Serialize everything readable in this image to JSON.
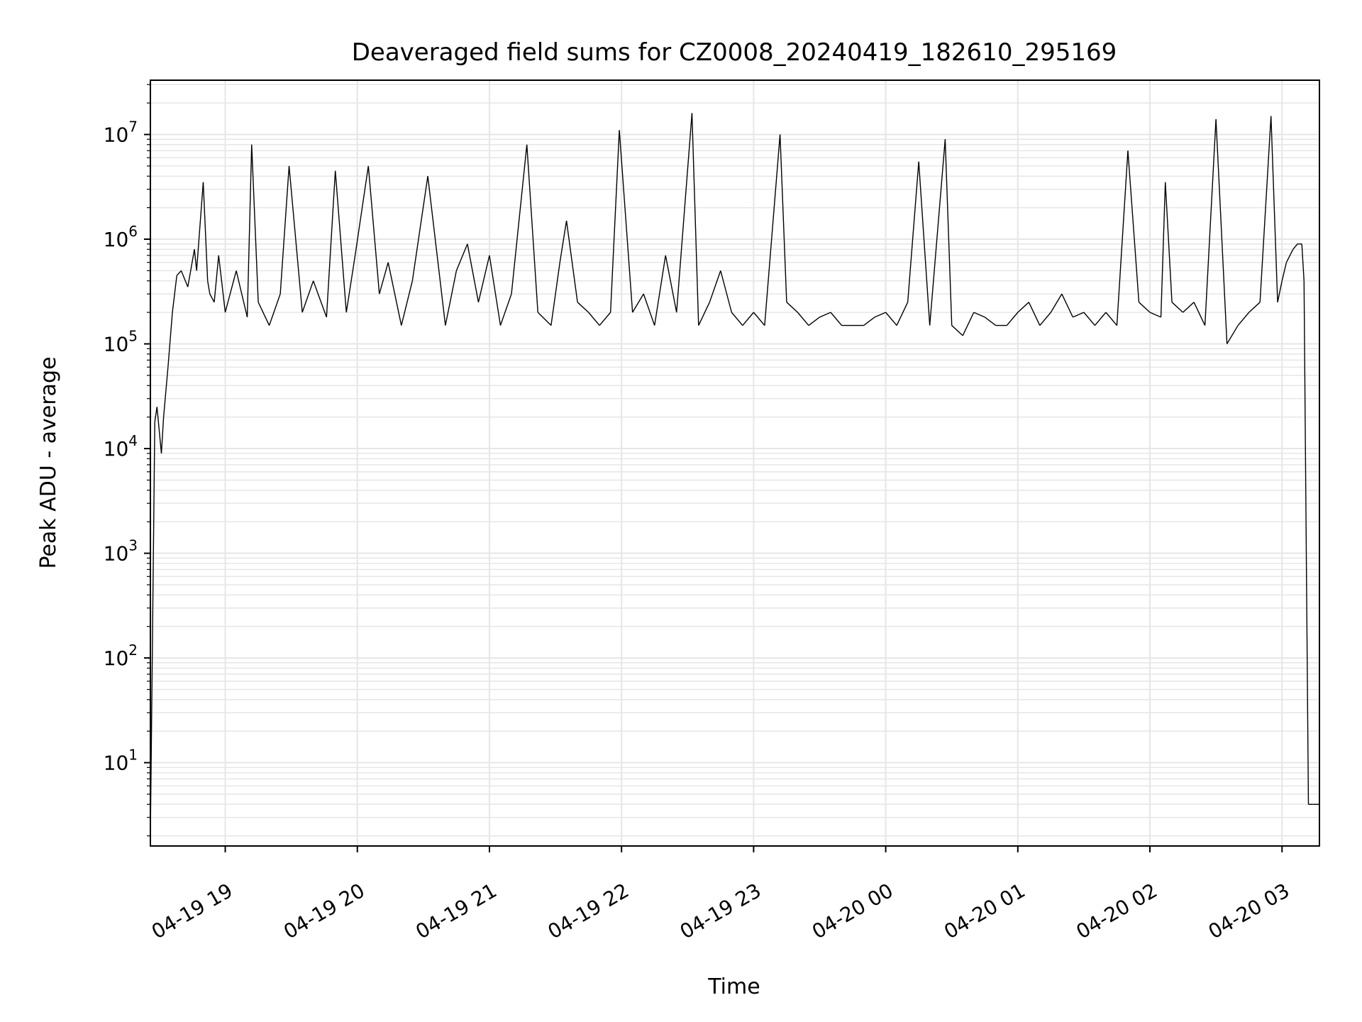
{
  "chart_data": {
    "type": "line",
    "title": "Deaveraged field sums for CZ0008_20240419_182610_295169",
    "xlabel": "Time",
    "ylabel": "Peak ADU - average",
    "yscale": "log",
    "ylim": [
      1.6,
      33000000
    ],
    "xlim": [
      "2024-04-19 18:26",
      "2024-04-20 03:17"
    ],
    "grid": true,
    "line_color": "#000000",
    "grid_color": "#e6e6e6",
    "x_ticks": [
      {
        "label": "04-19 19",
        "time": "2024-04-19 19:00"
      },
      {
        "label": "04-19 20",
        "time": "2024-04-19 20:00"
      },
      {
        "label": "04-19 21",
        "time": "2024-04-19 21:00"
      },
      {
        "label": "04-19 22",
        "time": "2024-04-19 22:00"
      },
      {
        "label": "04-19 23",
        "time": "2024-04-19 23:00"
      },
      {
        "label": "04-20 00",
        "time": "2024-04-20 00:00"
      },
      {
        "label": "04-20 01",
        "time": "2024-04-20 01:00"
      },
      {
        "label": "04-20 02",
        "time": "2024-04-20 02:00"
      },
      {
        "label": "04-20 03",
        "time": "2024-04-20 03:00"
      }
    ],
    "y_ticks": [
      {
        "base": "10",
        "exp": "1",
        "value": 10
      },
      {
        "base": "10",
        "exp": "2",
        "value": 100
      },
      {
        "base": "10",
        "exp": "3",
        "value": 1000
      },
      {
        "base": "10",
        "exp": "4",
        "value": 10000
      },
      {
        "base": "10",
        "exp": "5",
        "value": 100000
      },
      {
        "base": "10",
        "exp": "6",
        "value": 1000000
      },
      {
        "base": "10",
        "exp": "7",
        "value": 10000000
      }
    ],
    "series": [
      {
        "x": [
          "2024-04-19 18:26",
          "2024-04-19 18:28",
          "2024-04-19 18:29",
          "2024-04-19 18:31",
          "2024-04-19 18:32",
          "2024-04-19 18:34",
          "2024-04-19 18:36",
          "2024-04-19 18:38",
          "2024-04-19 18:40",
          "2024-04-19 18:43",
          "2024-04-19 18:46",
          "2024-04-19 18:47",
          "2024-04-19 18:50",
          "2024-04-19 18:52",
          "2024-04-19 18:53",
          "2024-04-19 18:55",
          "2024-04-19 18:57",
          "2024-04-19 19:00",
          "2024-04-19 19:05",
          "2024-04-19 19:10",
          "2024-04-19 19:12",
          "2024-04-19 19:15",
          "2024-04-19 19:20",
          "2024-04-19 19:25",
          "2024-04-19 19:29",
          "2024-04-19 19:35",
          "2024-04-19 19:40",
          "2024-04-19 19:46",
          "2024-04-19 19:50",
          "2024-04-19 19:55",
          "2024-04-19 19:59",
          "2024-04-19 20:05",
          "2024-04-19 20:10",
          "2024-04-19 20:14",
          "2024-04-19 20:20",
          "2024-04-19 20:25",
          "2024-04-19 20:32",
          "2024-04-19 20:40",
          "2024-04-19 20:45",
          "2024-04-19 20:50",
          "2024-04-19 20:55",
          "2024-04-19 21:00",
          "2024-04-19 21:05",
          "2024-04-19 21:10",
          "2024-04-19 21:17",
          "2024-04-19 21:22",
          "2024-04-19 21:28",
          "2024-04-19 21:32",
          "2024-04-19 21:35",
          "2024-04-19 21:40",
          "2024-04-19 21:45",
          "2024-04-19 21:50",
          "2024-04-19 21:55",
          "2024-04-19 21:59",
          "2024-04-19 22:05",
          "2024-04-19 22:10",
          "2024-04-19 22:15",
          "2024-04-19 22:20",
          "2024-04-19 22:25",
          "2024-04-19 22:32",
          "2024-04-19 22:35",
          "2024-04-19 22:40",
          "2024-04-19 22:45",
          "2024-04-19 22:50",
          "2024-04-19 22:55",
          "2024-04-19 23:00",
          "2024-04-19 23:05",
          "2024-04-19 23:12",
          "2024-04-19 23:15",
          "2024-04-19 23:20",
          "2024-04-19 23:25",
          "2024-04-19 23:30",
          "2024-04-19 23:35",
          "2024-04-19 23:40",
          "2024-04-19 23:45",
          "2024-04-19 23:50",
          "2024-04-19 23:55",
          "2024-04-20 00:00",
          "2024-04-20 00:05",
          "2024-04-20 00:10",
          "2024-04-20 00:15",
          "2024-04-20 00:20",
          "2024-04-20 00:27",
          "2024-04-20 00:30",
          "2024-04-20 00:35",
          "2024-04-20 00:40",
          "2024-04-20 00:45",
          "2024-04-20 00:50",
          "2024-04-20 00:55",
          "2024-04-20 01:00",
          "2024-04-20 01:05",
          "2024-04-20 01:10",
          "2024-04-20 01:15",
          "2024-04-20 01:20",
          "2024-04-20 01:25",
          "2024-04-20 01:30",
          "2024-04-20 01:35",
          "2024-04-20 01:40",
          "2024-04-20 01:45",
          "2024-04-20 01:50",
          "2024-04-20 01:55",
          "2024-04-20 02:00",
          "2024-04-20 02:05",
          "2024-04-20 02:07",
          "2024-04-20 02:10",
          "2024-04-20 02:15",
          "2024-04-20 02:20",
          "2024-04-20 02:25",
          "2024-04-20 02:30",
          "2024-04-20 02:35",
          "2024-04-20 02:40",
          "2024-04-20 02:45",
          "2024-04-20 02:50",
          "2024-04-20 02:55",
          "2024-04-20 02:58",
          "2024-04-20 03:00",
          "2024-04-20 03:02",
          "2024-04-20 03:05",
          "2024-04-20 03:07",
          "2024-04-20 03:09",
          "2024-04-20 03:10",
          "2024-04-20 03:11",
          "2024-04-20 03:12",
          "2024-04-20 03:14",
          "2024-04-20 03:17"
        ],
        "values": [
          2,
          18000,
          25000,
          9000,
          20000,
          60000,
          200000,
          450000,
          500000,
          350000,
          800000,
          500000,
          3500000,
          400000,
          300000,
          250000,
          700000,
          200000,
          500000,
          180000,
          8000000,
          250000,
          150000,
          300000,
          5000000,
          200000,
          400000,
          180000,
          4500000,
          200000,
          700000,
          5000000,
          300000,
          600000,
          150000,
          400000,
          4000000,
          150000,
          500000,
          900000,
          250000,
          700000,
          150000,
          300000,
          8000000,
          200000,
          150000,
          600000,
          1500000,
          250000,
          200000,
          150000,
          200000,
          11000000,
          200000,
          300000,
          150000,
          700000,
          200000,
          16000000,
          150000,
          250000,
          500000,
          200000,
          150000,
          200000,
          150000,
          10000000,
          250000,
          200000,
          150000,
          180000,
          200000,
          150000,
          150000,
          150000,
          180000,
          200000,
          150000,
          250000,
          5500000,
          150000,
          9000000,
          150000,
          120000,
          200000,
          180000,
          150000,
          150000,
          200000,
          250000,
          150000,
          200000,
          300000,
          180000,
          200000,
          150000,
          200000,
          150000,
          7000000,
          250000,
          200000,
          180000,
          3500000,
          250000,
          200000,
          250000,
          150000,
          14000000,
          100000,
          150000,
          200000,
          250000,
          15000000,
          250000,
          400000,
          600000,
          800000,
          900000,
          900000,
          400000,
          1200,
          4,
          4,
          4
        ]
      }
    ]
  }
}
